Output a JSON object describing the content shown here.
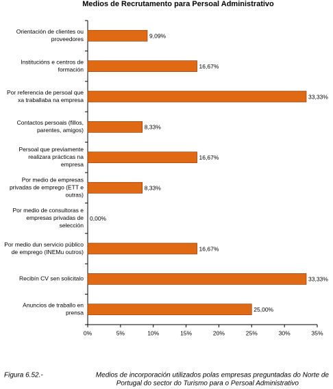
{
  "chart_data": {
    "type": "bar",
    "orientation": "horizontal",
    "title": "Medios de Recrutamento para Persoal Administrativo",
    "categories": [
      [
        "Orientación de clientes ou",
        "proveedores"
      ],
      [
        "Institucións e centros de",
        "formación"
      ],
      [
        "Por referencia de persoal que",
        "xa traballaba na empresa"
      ],
      [
        "Contactos persoais (fillos,",
        "parentes, amigos)"
      ],
      [
        "Persoal que previamente",
        "realizara prácticas na",
        "empresa"
      ],
      [
        "Por medio de empresas",
        "privadas de emprego (ETT e",
        "outras)"
      ],
      [
        "Por medio  de consultoras e",
        "empresas privadas de",
        "selección"
      ],
      [
        "Por medio dun servicio público",
        "de emprego (INEMu outros)"
      ],
      [
        "Recibín CV sen solicitalo"
      ],
      [
        "Anuncios de traballo en",
        "prensa"
      ]
    ],
    "values": [
      9.09,
      16.67,
      33.33,
      8.33,
      16.67,
      8.33,
      0,
      16.67,
      33.33,
      25
    ],
    "value_labels": [
      "9,09%",
      "16,67%",
      "33,33%",
      "8,33%",
      "16,67%",
      "8,33%",
      "0,00%",
      "16,67%",
      "33,33%",
      "25,00%"
    ],
    "color": "#e06a14",
    "xlim": [
      0,
      35
    ],
    "xticks": [
      {
        "value": 0,
        "label": "0%"
      },
      {
        "value": 5,
        "label": "5%"
      },
      {
        "value": 10,
        "label": "10%"
      },
      {
        "value": 15,
        "label": "15%"
      },
      {
        "value": 20,
        "label": "20%"
      },
      {
        "value": 25,
        "label": "25%"
      },
      {
        "value": 30,
        "label": "30%"
      },
      {
        "value": 35,
        "label": "35%"
      }
    ],
    "grid": false
  },
  "caption": {
    "label": "Figura 6.52.-",
    "lines": [
      "Medios de incorporación utilizados polas empresas preguntadas do Norte de",
      "Portugal do sector do Turismo para o Persoal Administrativo"
    ]
  }
}
